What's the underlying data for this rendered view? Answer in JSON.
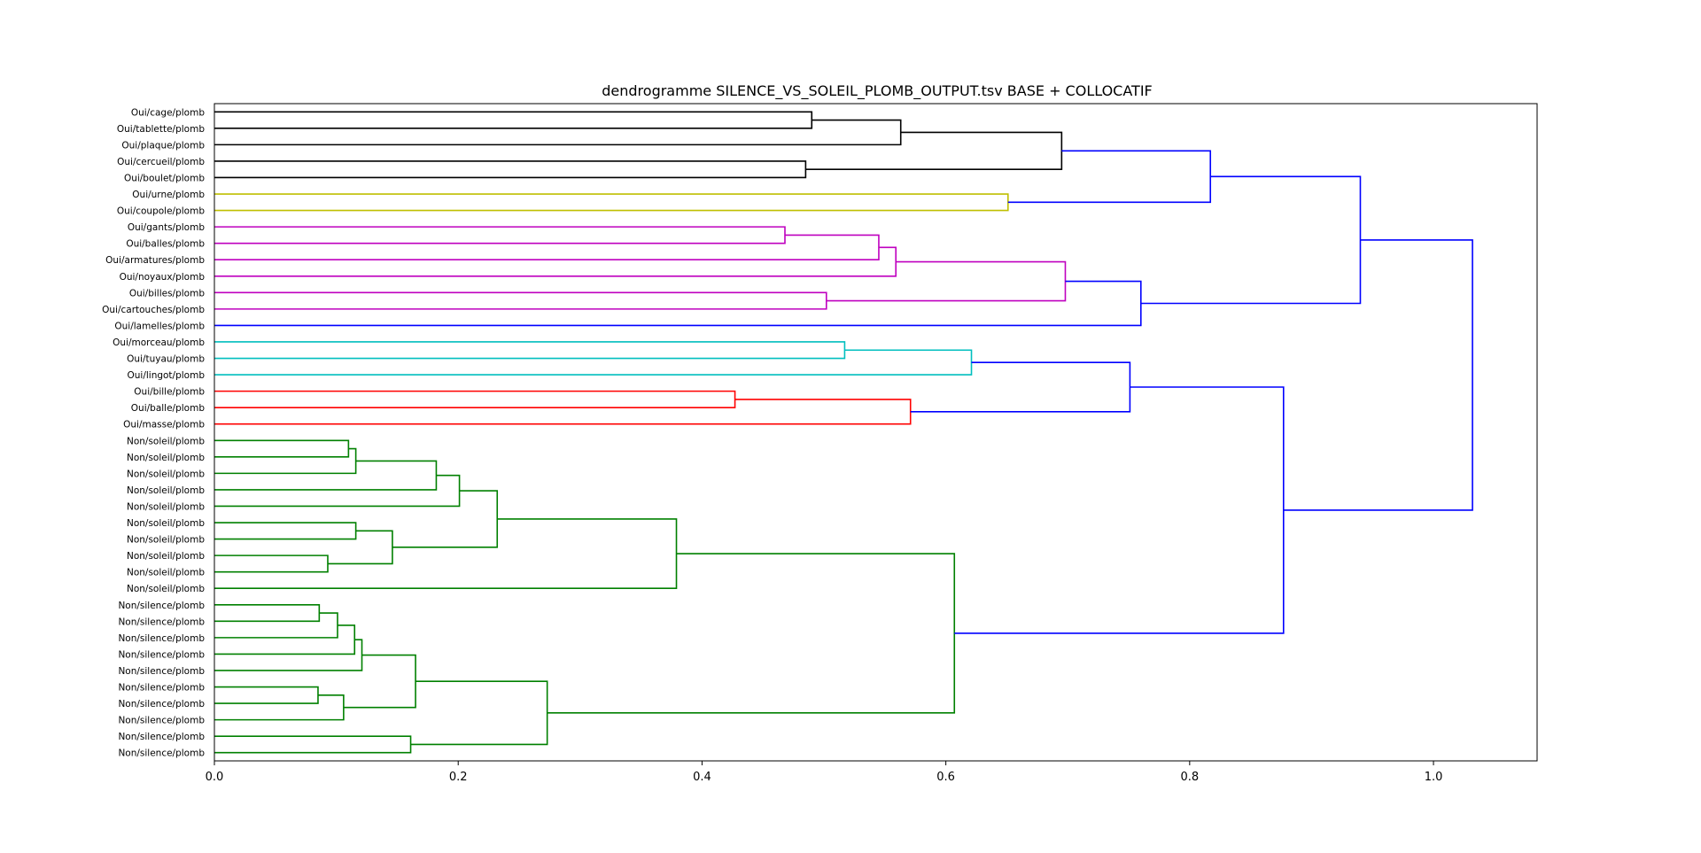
{
  "chart_data": {
    "type": "dendrogram",
    "orientation": "horizontal",
    "title": "dendrogramme SILENCE_VS_SOLEIL_PLOMB_OUTPUT.tsv BASE + COLLOCATIF",
    "xlim": [
      0.0,
      1.085
    ],
    "xticks": [
      0.0,
      0.2,
      0.4,
      0.6,
      0.8,
      1.0
    ],
    "xtick_labels": [
      "0.0",
      "0.2",
      "0.4",
      "0.6",
      "0.8",
      "1.0"
    ],
    "colors": {
      "black": "#000000",
      "olive": "#bfbf00",
      "magenta": "#bf00bf",
      "blue": "#0000ff",
      "cyan": "#00bfbf",
      "red": "#ff0000",
      "green": "#008000"
    },
    "leaves": [
      "Oui/cage/plomb",
      "Oui/tablette/plomb",
      "Oui/plaque/plomb",
      "Oui/cercueil/plomb",
      "Oui/boulet/plomb",
      "Oui/urne/plomb",
      "Oui/coupole/plomb",
      "Oui/gants/plomb",
      "Oui/balles/plomb",
      "Oui/armatures/plomb",
      "Oui/noyaux/plomb",
      "Oui/billes/plomb",
      "Oui/cartouches/plomb",
      "Oui/lamelles/plomb",
      "Oui/morceau/plomb",
      "Oui/tuyau/plomb",
      "Oui/lingot/plomb",
      "Oui/bille/plomb",
      "Oui/balle/plomb",
      "Oui/masse/plomb",
      "Non/soleil/plomb",
      "Non/soleil/plomb",
      "Non/soleil/plomb",
      "Non/soleil/plomb",
      "Non/soleil/plomb",
      "Non/soleil/plomb",
      "Non/soleil/plomb",
      "Non/soleil/plomb",
      "Non/soleil/plomb",
      "Non/soleil/plomb",
      "Non/silence/plomb",
      "Non/silence/plomb",
      "Non/silence/plomb",
      "Non/silence/plomb",
      "Non/silence/plomb",
      "Non/silence/plomb",
      "Non/silence/plomb",
      "Non/silence/plomb",
      "Non/silence/plomb",
      "Non/silence/plomb"
    ],
    "merges": [
      {
        "id": "m1",
        "left": 0,
        "right": 1,
        "height": 0.49,
        "color": "black"
      },
      {
        "id": "m2",
        "left": "m1",
        "right": 2,
        "height": 0.563,
        "color": "black"
      },
      {
        "id": "m3",
        "left": 3,
        "right": 4,
        "height": 0.485,
        "color": "black"
      },
      {
        "id": "m4",
        "left": "m2",
        "right": "m3",
        "height": 0.695,
        "color": "black"
      },
      {
        "id": "m5",
        "left": 5,
        "right": 6,
        "height": 0.651,
        "color": "olive"
      },
      {
        "id": "m6",
        "left": "m4",
        "right": "m5",
        "height": 0.817,
        "color": "blue"
      },
      {
        "id": "m7",
        "left": 7,
        "right": 8,
        "height": 0.468,
        "color": "magenta"
      },
      {
        "id": "m8",
        "left": "m7",
        "right": 9,
        "height": 0.545,
        "color": "magenta"
      },
      {
        "id": "m9",
        "left": "m8",
        "right": 10,
        "height": 0.559,
        "color": "magenta"
      },
      {
        "id": "m10",
        "left": 11,
        "right": 12,
        "height": 0.502,
        "color": "magenta"
      },
      {
        "id": "m11",
        "left": "m9",
        "right": "m10",
        "height": 0.698,
        "color": "magenta"
      },
      {
        "id": "m12",
        "left": "m11",
        "right": 13,
        "height": 0.76,
        "color": "blue"
      },
      {
        "id": "m13",
        "left": "m6",
        "right": "m12",
        "height": 0.94,
        "color": "blue"
      },
      {
        "id": "m14",
        "left": 14,
        "right": 15,
        "height": 0.517,
        "color": "cyan"
      },
      {
        "id": "m15",
        "left": "m14",
        "right": 16,
        "height": 0.621,
        "color": "cyan"
      },
      {
        "id": "m16",
        "left": 17,
        "right": 18,
        "height": 0.427,
        "color": "red"
      },
      {
        "id": "m17",
        "left": "m16",
        "right": 19,
        "height": 0.571,
        "color": "red"
      },
      {
        "id": "m18",
        "left": "m15",
        "right": "m17",
        "height": 0.751,
        "color": "blue"
      },
      {
        "id": "m19",
        "left": 20,
        "right": 21,
        "height": 0.11,
        "color": "green"
      },
      {
        "id": "m20",
        "left": "m19",
        "right": 22,
        "height": 0.116,
        "color": "green"
      },
      {
        "id": "m21",
        "left": "m20",
        "right": 23,
        "height": 0.182,
        "color": "green"
      },
      {
        "id": "m22",
        "left": "m21",
        "right": 24,
        "height": 0.201,
        "color": "green"
      },
      {
        "id": "m23",
        "left": 25,
        "right": 26,
        "height": 0.116,
        "color": "green"
      },
      {
        "id": "m24",
        "left": 27,
        "right": 28,
        "height": 0.093,
        "color": "green"
      },
      {
        "id": "m25",
        "left": "m23",
        "right": "m24",
        "height": 0.146,
        "color": "green"
      },
      {
        "id": "m26",
        "left": "m22",
        "right": "m25",
        "height": 0.232,
        "color": "green"
      },
      {
        "id": "m27",
        "left": "m26",
        "right": 29,
        "height": 0.379,
        "color": "green"
      },
      {
        "id": "m28",
        "left": 30,
        "right": 31,
        "height": 0.086,
        "color": "green"
      },
      {
        "id": "m29",
        "left": "m28",
        "right": 32,
        "height": 0.101,
        "color": "green"
      },
      {
        "id": "m30",
        "left": "m29",
        "right": 33,
        "height": 0.115,
        "color": "green"
      },
      {
        "id": "m31",
        "left": "m30",
        "right": 34,
        "height": 0.121,
        "color": "green"
      },
      {
        "id": "m32",
        "left": 35,
        "right": 36,
        "height": 0.085,
        "color": "green"
      },
      {
        "id": "m33",
        "left": "m32",
        "right": 37,
        "height": 0.106,
        "color": "green"
      },
      {
        "id": "m34",
        "left": "m31",
        "right": "m33",
        "height": 0.165,
        "color": "green"
      },
      {
        "id": "m35",
        "left": 38,
        "right": 39,
        "height": 0.161,
        "color": "green"
      },
      {
        "id": "m36",
        "left": "m34",
        "right": "m35",
        "height": 0.273,
        "color": "green"
      },
      {
        "id": "m37",
        "left": "m27",
        "right": "m36",
        "height": 0.607,
        "color": "green"
      },
      {
        "id": "m38",
        "left": "m18",
        "right": "m37",
        "height": 0.877,
        "color": "blue"
      },
      {
        "id": "m39",
        "left": "m13",
        "right": "m38",
        "height": 1.032,
        "color": "blue"
      }
    ]
  }
}
